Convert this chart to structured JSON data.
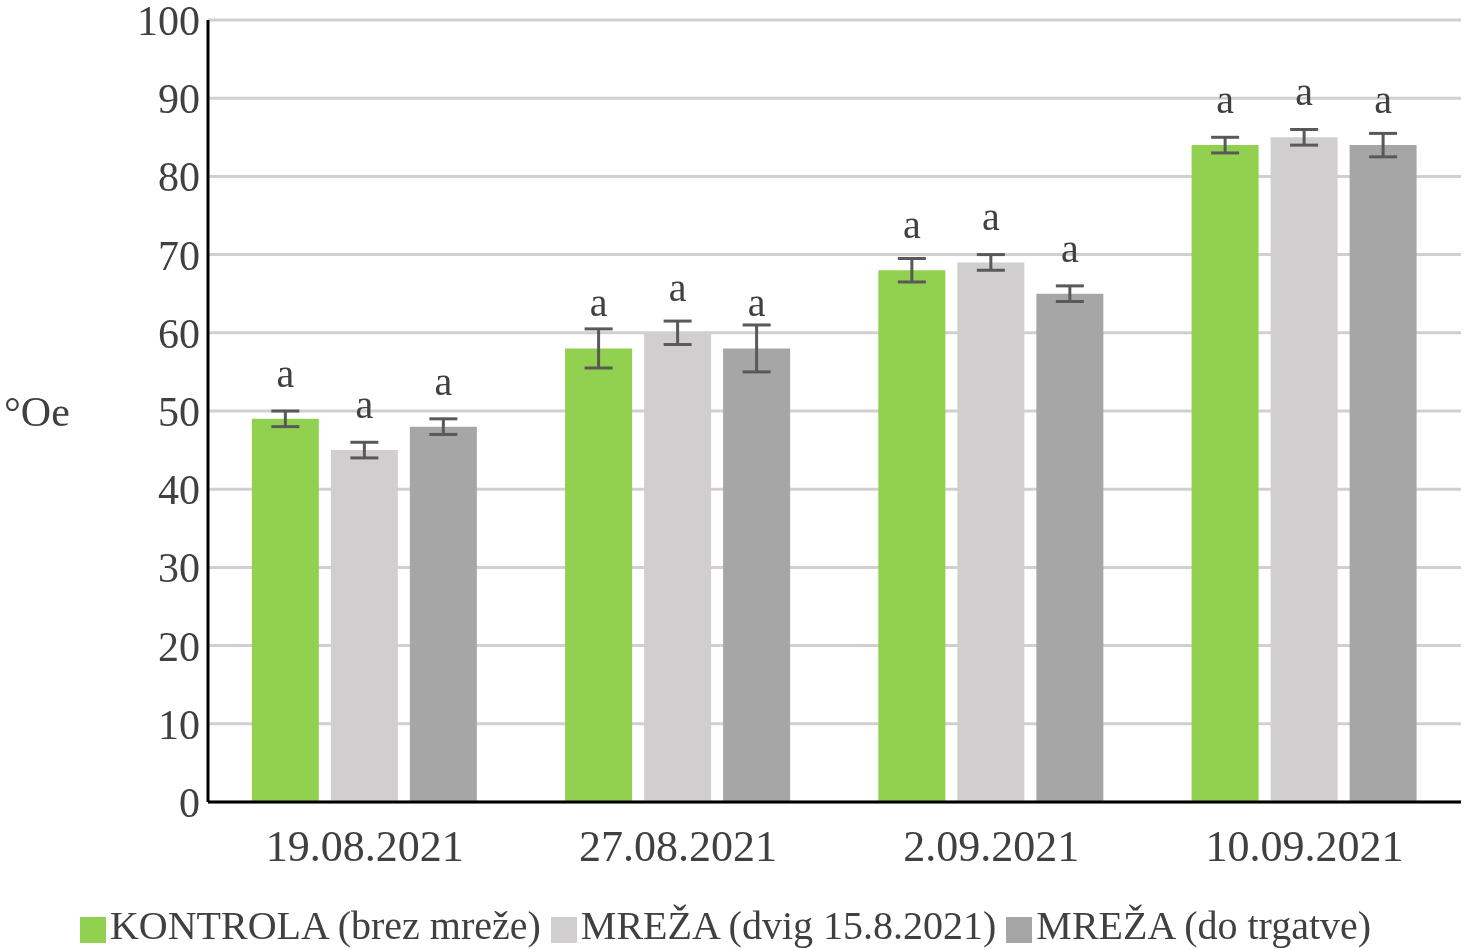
{
  "chart_data": {
    "type": "bar",
    "ylabel": "°Oe",
    "categories": [
      "19.08.2021",
      "27.08.2021",
      "2.09.2021",
      "10.09.2021"
    ],
    "series": [
      {
        "name": "KONTROLA (brez mreže)",
        "color": "#92d050",
        "values": [
          49,
          58,
          68,
          84
        ],
        "errors": [
          1,
          2.5,
          1.5,
          1
        ],
        "value_labels": [
          "a",
          "a",
          "a",
          "a"
        ]
      },
      {
        "name": "MREŽA (dvig 15.8.2021)",
        "color": "#d0cece",
        "values": [
          45,
          60,
          69,
          85
        ],
        "errors": [
          1,
          1.5,
          1,
          1
        ],
        "value_labels": [
          "a",
          "a",
          "a",
          "a"
        ]
      },
      {
        "name": "MREŽA (do trgatve)",
        "color": "#a6a6a6",
        "values": [
          48,
          58,
          65,
          84
        ],
        "errors": [
          1,
          3,
          1,
          1.5
        ],
        "value_labels": [
          "a",
          "a",
          "a",
          "a"
        ]
      }
    ],
    "ylim": [
      0,
      100
    ],
    "yticks": [
      0,
      10,
      20,
      30,
      40,
      50,
      60,
      70,
      80,
      90,
      100
    ],
    "grid": "y",
    "legend": "bottom"
  }
}
